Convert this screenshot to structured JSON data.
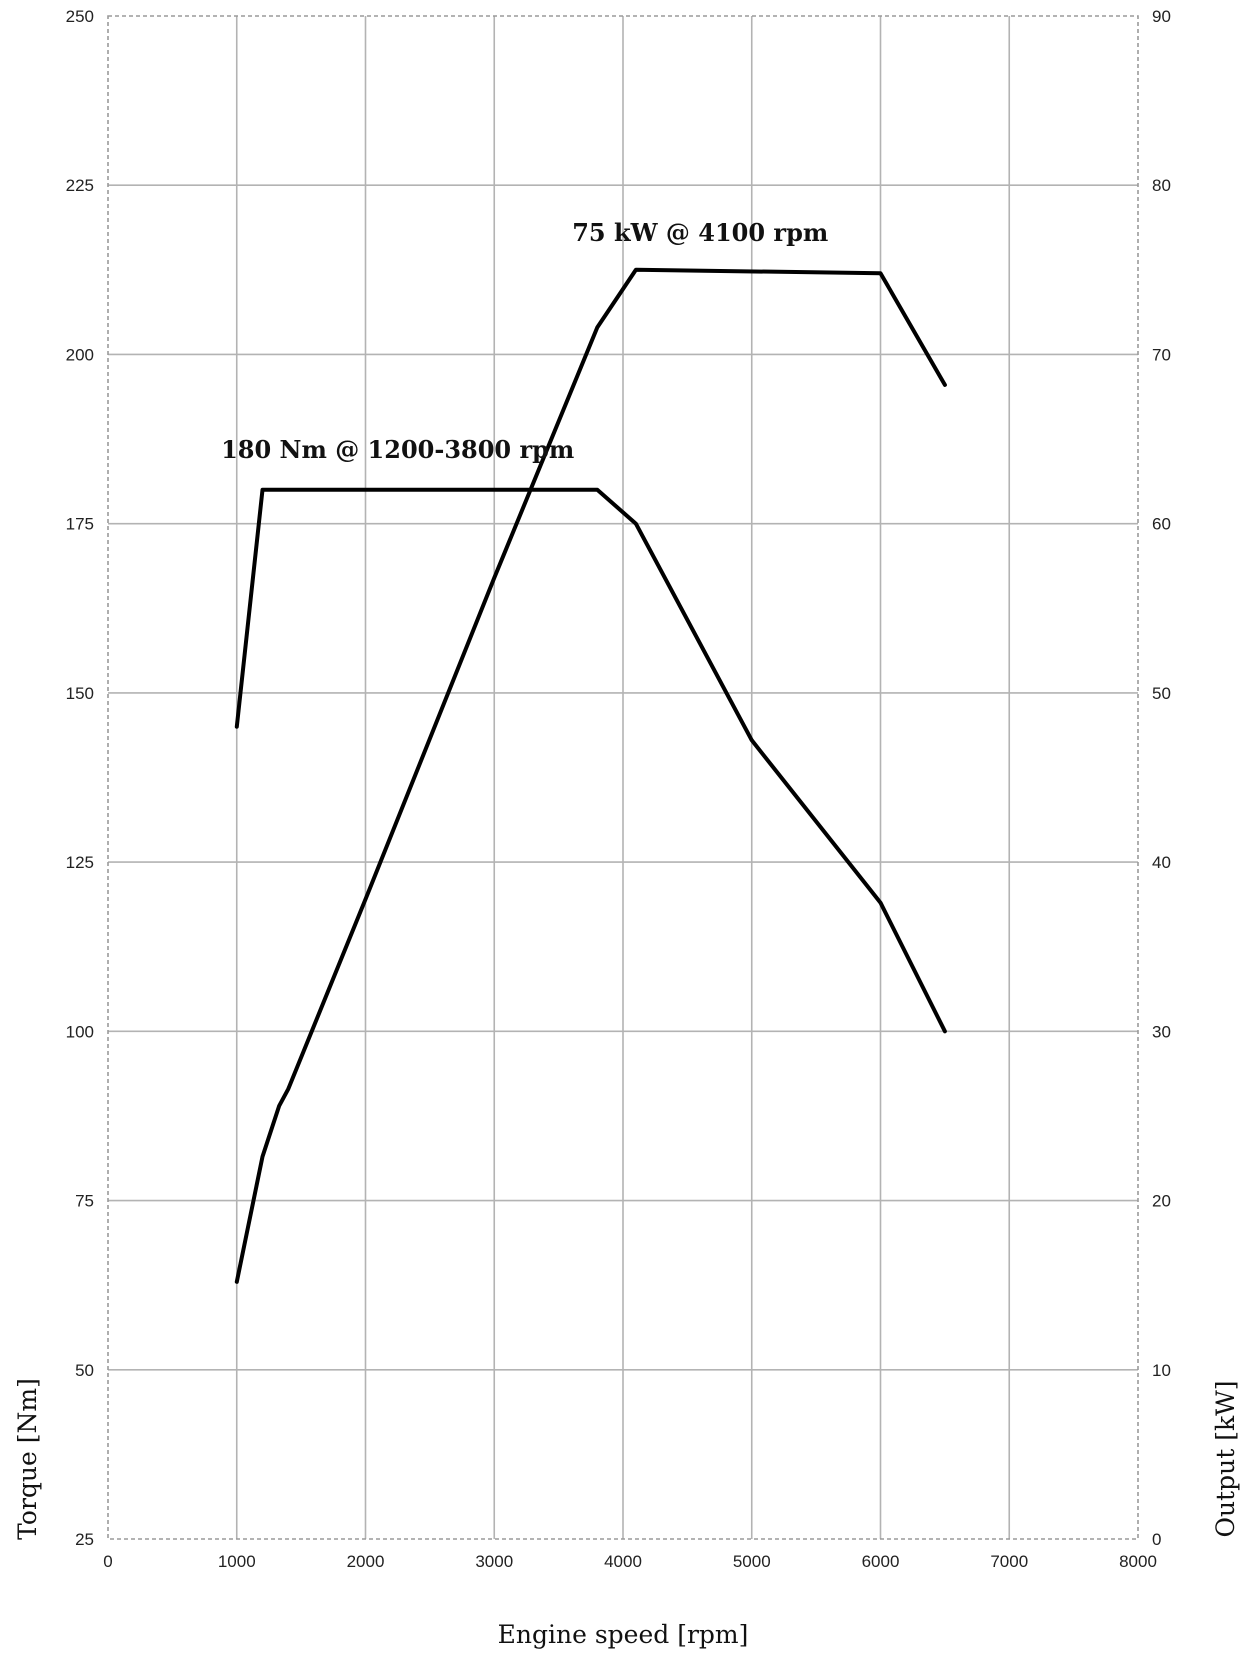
{
  "chart_data": {
    "type": "line",
    "xlabel": "Engine speed [rpm]",
    "ylabel_left": "Torque [Nm]",
    "ylabel_right": "Output [kW]",
    "xlim": [
      0,
      8000
    ],
    "ylim_left": [
      25,
      250
    ],
    "ylim_right": [
      0,
      90
    ],
    "x_ticks": [
      "0",
      "1000",
      "2000",
      "3000",
      "4000",
      "5000",
      "6000",
      "7000",
      "8000"
    ],
    "y_left_ticks": [
      "25",
      "50",
      "75",
      "100",
      "125",
      "150",
      "175",
      "200",
      "225",
      "250"
    ],
    "y_right_ticks": [
      "0",
      "10",
      "20",
      "30",
      "40",
      "50",
      "60",
      "70",
      "80",
      "90"
    ],
    "grid": true,
    "series": [
      {
        "axis": "left",
        "x": [
          1000,
          1200,
          3800,
          4100,
          5000,
          6000,
          6500
        ],
        "values": [
          145,
          180,
          180,
          175,
          143,
          119,
          100
        ]
      },
      {
        "axis": "right",
        "x": [
          1000,
          1200,
          1330,
          1400,
          2000,
          3000,
          3800,
          4100,
          6000,
          6500
        ],
        "values": [
          15.2,
          22.6,
          25.6,
          26.6,
          37.8,
          56.8,
          71.6,
          75,
          74.8,
          68.2
        ]
      }
    ],
    "annotations": [
      {
        "text": "180 Nm @ 1200-3800 rpm",
        "x": 2250,
        "y_left": 180
      },
      {
        "text": "75 kW @ 4100 rpm",
        "x": 4600,
        "y_left": 212
      }
    ],
    "colors": {
      "line": "#000000",
      "grid": "#b3b3b3"
    }
  }
}
